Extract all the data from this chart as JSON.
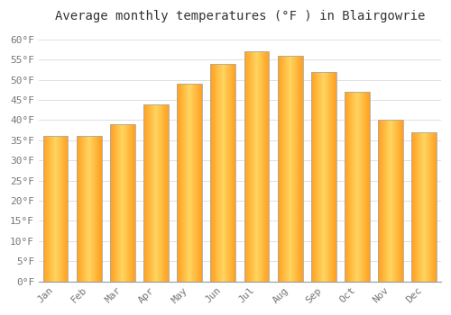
{
  "title": "Average monthly temperatures (°F ) in Blairgowrie",
  "months": [
    "Jan",
    "Feb",
    "Mar",
    "Apr",
    "May",
    "Jun",
    "Jul",
    "Aug",
    "Sep",
    "Oct",
    "Nov",
    "Dec"
  ],
  "values": [
    36,
    36,
    39,
    44,
    49,
    54,
    57,
    56,
    52,
    47,
    40,
    37
  ],
  "ylim": [
    0,
    63
  ],
  "yticks": [
    0,
    5,
    10,
    15,
    20,
    25,
    30,
    35,
    40,
    45,
    50,
    55,
    60
  ],
  "ytick_labels": [
    "0°F",
    "5°F",
    "10°F",
    "15°F",
    "20°F",
    "25°F",
    "30°F",
    "35°F",
    "40°F",
    "45°F",
    "50°F",
    "55°F",
    "60°F"
  ],
  "background_color": "#FFFFFF",
  "grid_color": "#E0E0E0",
  "bar_edge_color": "#AAAAAA",
  "bar_center_color": "#FFD060",
  "bar_edge_orange": "#FFA020",
  "title_fontsize": 10,
  "tick_fontsize": 8,
  "bar_width": 0.75
}
